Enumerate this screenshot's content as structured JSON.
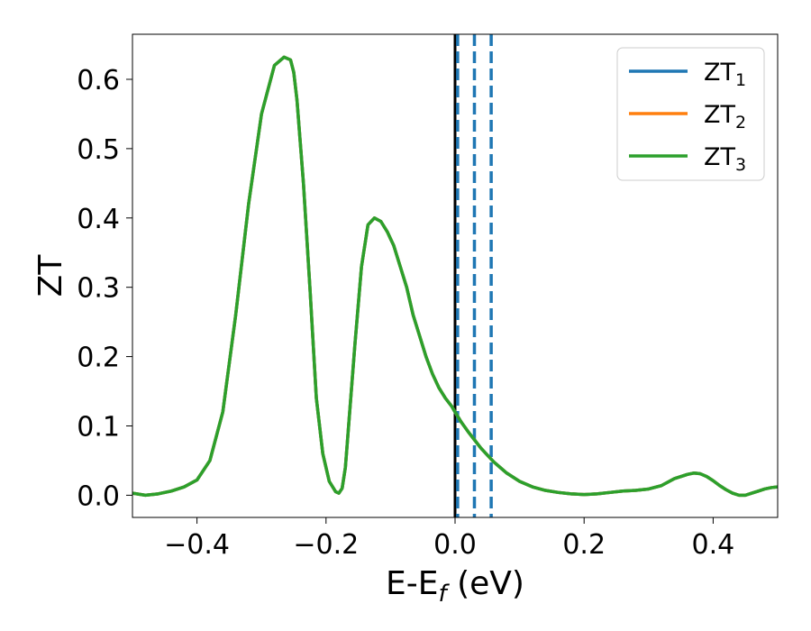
{
  "chart_data": {
    "type": "line",
    "title": "",
    "xlabel": "E-E",
    "xlabel_sub": "f",
    "xlabel_unit": " (eV)",
    "ylabel": "ZT",
    "xlim": [
      -0.5,
      0.5
    ],
    "ylim": [
      -0.032,
      0.665
    ],
    "grid": false,
    "legend_position": "top-right",
    "x_ticks": [
      -0.4,
      -0.2,
      0.0,
      0.2,
      0.4
    ],
    "x_tick_labels": [
      "−0.4",
      "−0.2",
      "0.0",
      "0.2",
      "0.4"
    ],
    "y_ticks": [
      0.0,
      0.1,
      0.2,
      0.3,
      0.4,
      0.5,
      0.6
    ],
    "y_tick_labels": [
      "0.0",
      "0.1",
      "0.2",
      "0.3",
      "0.4",
      "0.5",
      "0.6"
    ],
    "vertical_lines": [
      {
        "x": 0.0,
        "style": "solid",
        "color": "#000000"
      },
      {
        "x": 0.004,
        "style": "dashed",
        "color": "#1f77b4"
      },
      {
        "x": 0.03,
        "style": "dashed",
        "color": "#1f77b4"
      },
      {
        "x": 0.056,
        "style": "dashed",
        "color": "#1f77b4"
      }
    ],
    "series": [
      {
        "name": "ZT",
        "name_sub": "1",
        "color": "#1f77b4",
        "x": [
          -0.5,
          -0.48,
          -0.46,
          -0.44,
          -0.42,
          -0.4,
          -0.38,
          -0.36,
          -0.34,
          -0.32,
          -0.3,
          -0.28,
          -0.265,
          -0.255,
          -0.25,
          -0.245,
          -0.235,
          -0.225,
          -0.215,
          -0.205,
          -0.195,
          -0.185,
          -0.18,
          -0.175,
          -0.17,
          -0.165,
          -0.155,
          -0.145,
          -0.135,
          -0.125,
          -0.115,
          -0.105,
          -0.1,
          -0.095,
          -0.085,
          -0.075,
          -0.065,
          -0.055,
          -0.045,
          -0.035,
          -0.025,
          -0.015,
          -0.005,
          0.0,
          0.01,
          0.02,
          0.03,
          0.04,
          0.05,
          0.06,
          0.07,
          0.08,
          0.1,
          0.12,
          0.14,
          0.16,
          0.18,
          0.2,
          0.22,
          0.24,
          0.26,
          0.28,
          0.3,
          0.32,
          0.34,
          0.36,
          0.37,
          0.38,
          0.39,
          0.4,
          0.41,
          0.42,
          0.43,
          0.44,
          0.45,
          0.46,
          0.47,
          0.48,
          0.49,
          0.5
        ],
        "y": [
          0.003,
          0.0,
          0.002,
          0.006,
          0.012,
          0.022,
          0.05,
          0.12,
          0.26,
          0.42,
          0.55,
          0.62,
          0.632,
          0.628,
          0.61,
          0.57,
          0.45,
          0.3,
          0.14,
          0.06,
          0.02,
          0.005,
          0.003,
          0.01,
          0.04,
          0.1,
          0.22,
          0.33,
          0.39,
          0.4,
          0.395,
          0.38,
          0.37,
          0.36,
          0.33,
          0.3,
          0.26,
          0.23,
          0.2,
          0.175,
          0.155,
          0.14,
          0.128,
          0.12,
          0.105,
          0.092,
          0.08,
          0.068,
          0.058,
          0.048,
          0.04,
          0.032,
          0.02,
          0.012,
          0.007,
          0.004,
          0.002,
          0.001,
          0.002,
          0.004,
          0.006,
          0.007,
          0.009,
          0.014,
          0.024,
          0.03,
          0.032,
          0.031,
          0.027,
          0.021,
          0.014,
          0.008,
          0.003,
          0.0,
          0.0,
          0.003,
          0.006,
          0.009,
          0.011,
          0.012
        ]
      },
      {
        "name": "ZT",
        "name_sub": "2",
        "color": "#ff7f0e",
        "x": [
          -0.5,
          -0.48,
          -0.46,
          -0.44,
          -0.42,
          -0.4,
          -0.38,
          -0.36,
          -0.34,
          -0.32,
          -0.3,
          -0.28,
          -0.265,
          -0.255,
          -0.25,
          -0.245,
          -0.235,
          -0.225,
          -0.215,
          -0.205,
          -0.195,
          -0.185,
          -0.18,
          -0.175,
          -0.17,
          -0.165,
          -0.155,
          -0.145,
          -0.135,
          -0.125,
          -0.115,
          -0.105,
          -0.1,
          -0.095,
          -0.085,
          -0.075,
          -0.065,
          -0.055,
          -0.045,
          -0.035,
          -0.025,
          -0.015,
          -0.005,
          0.0,
          0.01,
          0.02,
          0.03,
          0.04,
          0.05,
          0.06,
          0.07,
          0.08,
          0.1,
          0.12,
          0.14,
          0.16,
          0.18,
          0.2,
          0.22,
          0.24,
          0.26,
          0.28,
          0.3,
          0.32,
          0.34,
          0.36,
          0.37,
          0.38,
          0.39,
          0.4,
          0.41,
          0.42,
          0.43,
          0.44,
          0.45,
          0.46,
          0.47,
          0.48,
          0.49,
          0.5
        ],
        "y": [
          0.003,
          0.0,
          0.002,
          0.006,
          0.012,
          0.022,
          0.05,
          0.12,
          0.26,
          0.42,
          0.55,
          0.62,
          0.632,
          0.628,
          0.61,
          0.57,
          0.45,
          0.3,
          0.14,
          0.06,
          0.02,
          0.005,
          0.003,
          0.01,
          0.04,
          0.1,
          0.22,
          0.33,
          0.39,
          0.4,
          0.395,
          0.38,
          0.37,
          0.36,
          0.33,
          0.3,
          0.26,
          0.23,
          0.2,
          0.175,
          0.155,
          0.14,
          0.128,
          0.12,
          0.105,
          0.092,
          0.08,
          0.068,
          0.058,
          0.048,
          0.04,
          0.032,
          0.02,
          0.012,
          0.007,
          0.004,
          0.002,
          0.001,
          0.002,
          0.004,
          0.006,
          0.007,
          0.009,
          0.014,
          0.024,
          0.03,
          0.032,
          0.031,
          0.027,
          0.021,
          0.014,
          0.008,
          0.003,
          0.0,
          0.0,
          0.003,
          0.006,
          0.009,
          0.011,
          0.012
        ]
      },
      {
        "name": "ZT",
        "name_sub": "3",
        "color": "#2ca02c",
        "x": [
          -0.5,
          -0.48,
          -0.46,
          -0.44,
          -0.42,
          -0.4,
          -0.38,
          -0.36,
          -0.34,
          -0.32,
          -0.3,
          -0.28,
          -0.265,
          -0.255,
          -0.25,
          -0.245,
          -0.235,
          -0.225,
          -0.215,
          -0.205,
          -0.195,
          -0.185,
          -0.18,
          -0.175,
          -0.17,
          -0.165,
          -0.155,
          -0.145,
          -0.135,
          -0.125,
          -0.115,
          -0.105,
          -0.1,
          -0.095,
          -0.085,
          -0.075,
          -0.065,
          -0.055,
          -0.045,
          -0.035,
          -0.025,
          -0.015,
          -0.005,
          0.0,
          0.01,
          0.02,
          0.03,
          0.04,
          0.05,
          0.06,
          0.07,
          0.08,
          0.1,
          0.12,
          0.14,
          0.16,
          0.18,
          0.2,
          0.22,
          0.24,
          0.26,
          0.28,
          0.3,
          0.32,
          0.34,
          0.36,
          0.37,
          0.38,
          0.39,
          0.4,
          0.41,
          0.42,
          0.43,
          0.44,
          0.45,
          0.46,
          0.47,
          0.48,
          0.49,
          0.5
        ],
        "y": [
          0.003,
          0.0,
          0.002,
          0.006,
          0.012,
          0.022,
          0.05,
          0.12,
          0.26,
          0.42,
          0.55,
          0.62,
          0.632,
          0.628,
          0.61,
          0.57,
          0.45,
          0.3,
          0.14,
          0.06,
          0.02,
          0.005,
          0.003,
          0.01,
          0.04,
          0.1,
          0.22,
          0.33,
          0.39,
          0.4,
          0.395,
          0.38,
          0.37,
          0.36,
          0.33,
          0.3,
          0.26,
          0.23,
          0.2,
          0.175,
          0.155,
          0.14,
          0.128,
          0.12,
          0.105,
          0.092,
          0.08,
          0.068,
          0.058,
          0.048,
          0.04,
          0.032,
          0.02,
          0.012,
          0.007,
          0.004,
          0.002,
          0.001,
          0.002,
          0.004,
          0.006,
          0.007,
          0.009,
          0.014,
          0.024,
          0.03,
          0.032,
          0.031,
          0.027,
          0.021,
          0.014,
          0.008,
          0.003,
          0.0,
          0.0,
          0.003,
          0.006,
          0.009,
          0.011,
          0.012
        ]
      }
    ]
  }
}
